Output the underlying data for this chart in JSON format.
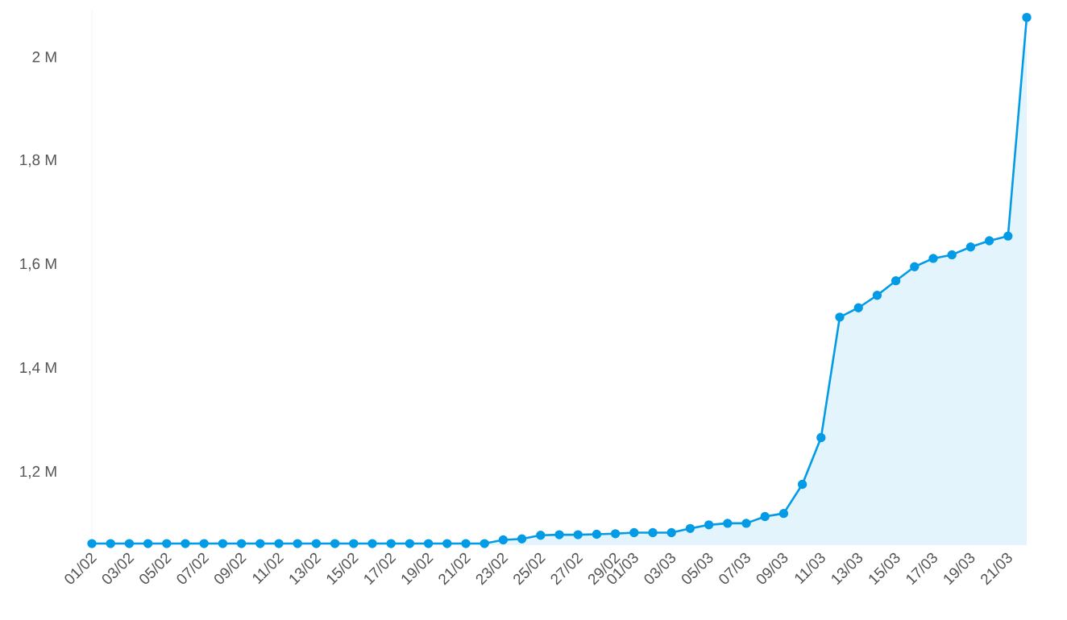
{
  "chart_data": {
    "type": "area",
    "categories": [
      "01/02",
      null,
      "03/02",
      null,
      "05/02",
      null,
      "07/02",
      null,
      "09/02",
      null,
      "11/02",
      null,
      "13/02",
      null,
      "15/02",
      null,
      "17/02",
      null,
      "19/02",
      null,
      "21/02",
      null,
      "23/02",
      null,
      "25/02",
      null,
      "27/02",
      null,
      "29/02",
      "01/03",
      null,
      "03/03",
      null,
      "05/03",
      null,
      "07/03",
      null,
      "09/03",
      null,
      "11/03",
      null,
      "13/03",
      null,
      "15/03",
      null,
      "17/03",
      null,
      "19/03",
      null,
      "21/03",
      null
    ],
    "series": [
      {
        "color": "#039be5",
        "values": [
          1063000,
          1063000,
          1063000,
          1063000,
          1063000,
          1063000,
          1063000,
          1063000,
          1063000,
          1063000,
          1063000,
          1063000,
          1063000,
          1063000,
          1063000,
          1063000,
          1063000,
          1063000,
          1063000,
          1063000,
          1063000,
          1063000,
          1070000,
          1072000,
          1079000,
          1080000,
          1080000,
          1081000,
          1082000,
          1084000,
          1084000,
          1084000,
          1092000,
          1099000,
          1102000,
          1102000,
          1115000,
          1121000,
          1177000,
          1267000,
          1499000,
          1517000,
          1541000,
          1569000,
          1596000,
          1612000,
          1619000,
          1634000,
          1646000,
          1655000,
          2076000
        ]
      }
    ],
    "ylim": [
      1060000,
      2090000
    ],
    "yticks": [
      {
        "value": 1200000,
        "label": "1,2 M"
      },
      {
        "value": 1400000,
        "label": "1,4 M"
      },
      {
        "value": 1600000,
        "label": "1,6 M"
      },
      {
        "value": 1800000,
        "label": "1,8 M"
      },
      {
        "value": 2000000,
        "label": "2 M"
      }
    ],
    "marker": "circle",
    "line_style": "solid"
  }
}
